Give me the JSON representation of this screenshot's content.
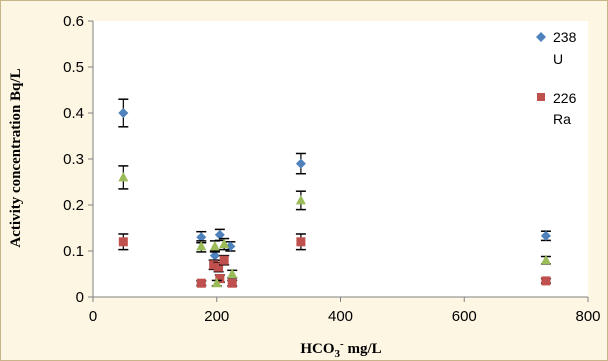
{
  "chart_data": {
    "type": "scatter",
    "xlabel": "HCO",
    "xlabel_sub": "3",
    "xlabel_sup": "-",
    "xlabel_unit": " mg/L",
    "ylabel": "Activity concentration Bq/L",
    "xlim": [
      0,
      800
    ],
    "ylim": [
      0,
      0.6
    ],
    "xticks": [
      "0",
      "200",
      "400",
      "600",
      "800"
    ],
    "yticks": [
      "0",
      "0.1",
      "0.2",
      "0.3",
      "0.4",
      "0.5",
      "0.6"
    ],
    "grid": false,
    "legend_position": "top-right",
    "colors": {
      "background": "#fdf6e3",
      "border": "#c9b48a",
      "u238": "#4f81bd",
      "ra226": "#c0504d",
      "green": "#9bbb59",
      "errorbar": "#000000"
    },
    "series": [
      {
        "name": "238 U",
        "legend_line1": "238",
        "legend_line2": "U",
        "marker": "diamond",
        "color": "#4f81bd",
        "points": [
          {
            "x": 49,
            "y": 0.4,
            "err": 0.03
          },
          {
            "x": 175,
            "y": 0.13,
            "err": 0.012
          },
          {
            "x": 197,
            "y": 0.09,
            "err": 0.01
          },
          {
            "x": 205,
            "y": 0.135,
            "err": 0.012
          },
          {
            "x": 222,
            "y": 0.11,
            "err": 0.01
          },
          {
            "x": 336,
            "y": 0.29,
            "err": 0.022
          },
          {
            "x": 732,
            "y": 0.133,
            "err": 0.01
          }
        ]
      },
      {
        "name": "226 Ra",
        "legend_line1": "226",
        "legend_line2": "Ra",
        "marker": "square",
        "color": "#c0504d",
        "points": [
          {
            "x": 49,
            "y": 0.12,
            "err": 0.017
          },
          {
            "x": 175,
            "y": 0.03,
            "err": 0.005
          },
          {
            "x": 195,
            "y": 0.07,
            "err": 0.01
          },
          {
            "x": 203,
            "y": 0.065,
            "err": 0.01
          },
          {
            "x": 205,
            "y": 0.04,
            "err": 0.008
          },
          {
            "x": 212,
            "y": 0.08,
            "err": 0.01
          },
          {
            "x": 225,
            "y": 0.03,
            "err": 0.006
          },
          {
            "x": 336,
            "y": 0.12,
            "err": 0.017
          },
          {
            "x": 732,
            "y": 0.035,
            "err": 0.005
          }
        ]
      },
      {
        "marker": "triangle",
        "color": "#9bbb59",
        "points": [
          {
            "x": 49,
            "y": 0.26,
            "err": 0.025
          },
          {
            "x": 175,
            "y": 0.11,
            "err": 0.012
          },
          {
            "x": 197,
            "y": 0.11,
            "err": 0.012
          },
          {
            "x": 200,
            "y": 0.03,
            "err": 0.006
          },
          {
            "x": 212,
            "y": 0.115,
            "err": 0.012
          },
          {
            "x": 225,
            "y": 0.05,
            "err": 0.008
          },
          {
            "x": 336,
            "y": 0.21,
            "err": 0.02
          },
          {
            "x": 732,
            "y": 0.08,
            "err": 0.008
          }
        ]
      }
    ]
  }
}
